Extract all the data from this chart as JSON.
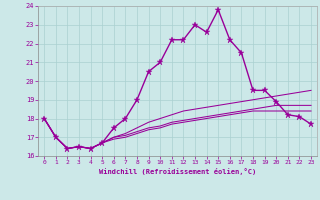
{
  "xlabel": "Windchill (Refroidissement éolien,°C)",
  "bg_color": "#cce8e8",
  "grid_color": "#aad0d0",
  "line_color": "#990099",
  "xlim": [
    -0.5,
    23.5
  ],
  "ylim": [
    16,
    24
  ],
  "yticks": [
    16,
    17,
    18,
    19,
    20,
    21,
    22,
    23,
    24
  ],
  "xticks": [
    0,
    1,
    2,
    3,
    4,
    5,
    6,
    7,
    8,
    9,
    10,
    11,
    12,
    13,
    14,
    15,
    16,
    17,
    18,
    19,
    20,
    21,
    22,
    23
  ],
  "series": [
    [
      18.0,
      17.0,
      16.4,
      16.5,
      16.4,
      16.7,
      17.5,
      18.0,
      19.0,
      20.5,
      21.0,
      22.2,
      22.2,
      23.0,
      22.6,
      23.8,
      22.2,
      21.5,
      19.5,
      19.5,
      18.9,
      18.2,
      18.1,
      17.7
    ],
    [
      18.0,
      17.0,
      16.4,
      16.5,
      16.4,
      16.7,
      17.0,
      17.2,
      17.5,
      17.8,
      18.0,
      18.2,
      18.4,
      18.5,
      18.6,
      18.7,
      18.8,
      18.9,
      19.0,
      19.1,
      19.2,
      19.3,
      19.4,
      19.5
    ],
    [
      18.0,
      17.0,
      16.4,
      16.5,
      16.4,
      16.7,
      17.0,
      17.1,
      17.3,
      17.5,
      17.6,
      17.8,
      17.9,
      18.0,
      18.1,
      18.2,
      18.3,
      18.4,
      18.5,
      18.6,
      18.7,
      18.7,
      18.7,
      18.7
    ],
    [
      18.0,
      17.0,
      16.4,
      16.5,
      16.4,
      16.7,
      16.9,
      17.0,
      17.2,
      17.4,
      17.5,
      17.7,
      17.8,
      17.9,
      18.0,
      18.1,
      18.2,
      18.3,
      18.4,
      18.4,
      18.4,
      18.4,
      18.4,
      18.4
    ]
  ],
  "label_fontsize": 5.0,
  "tick_fontsize": 4.5
}
